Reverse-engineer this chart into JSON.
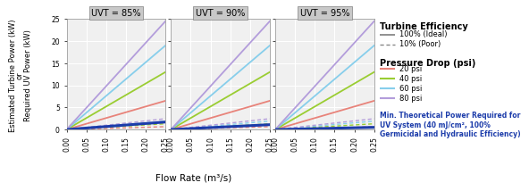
{
  "panels": [
    "UVT = 85%",
    "UVT = 90%",
    "UVT = 95%"
  ],
  "uvt_values": [
    0.85,
    0.9,
    0.95
  ],
  "pressure_drops_psi": [
    20,
    40,
    60,
    80
  ],
  "pressure_drop_colors": [
    "#e8837a",
    "#9acd32",
    "#87ceeb",
    "#b39ddb"
  ],
  "flow_max": 0.25,
  "y_max": 25,
  "y_ticks": [
    0,
    5,
    10,
    15,
    20,
    25
  ],
  "x_ticks": [
    0.0,
    0.05,
    0.1,
    0.15,
    0.2,
    0.25
  ],
  "turb_slopes_100": [
    26,
    52,
    76,
    98
  ],
  "min_power_slopes": [
    6.8,
    4.4,
    2.0
  ],
  "panel_bg": "#dcdcdc",
  "plot_bg": "#f0f0f0",
  "grid_color": "white",
  "min_power_color": "#1c3caa",
  "min_power_lw": 2.2,
  "line_lw_solid": 1.3,
  "line_lw_dashed": 1.0,
  "ylabel_line1": "Estimated Turbine Power (kW)",
  "ylabel_line2": "or",
  "ylabel_line3": "Required UV Power (kW)",
  "xlabel": "Flow Rate (m³/s)",
  "legend_efficiency_title": "Turbine Efficiency",
  "legend_efficiency_entries": [
    "100% (Ideal)",
    "10% (Poor)"
  ],
  "legend_pressure_title": "Pressure Drop (psi)",
  "legend_pressure_entries": [
    "20 psi",
    "40 psi",
    "60 psi",
    "80 psi"
  ],
  "legend_min_text": "Min. Theoretical Power Required for\nUV System (40 mJ/cm², 100%\nGermicidal and Hydraulic Efficiency)",
  "title_bg": "#c8c8c8",
  "title_fontsize": 7,
  "tick_fontsize": 5.5,
  "ylabel_fontsize": 6.0,
  "xlabel_fontsize": 7.5,
  "legend_title_fontsize": 7.0,
  "legend_text_fontsize": 6.0,
  "legend_min_fontsize": 5.5
}
